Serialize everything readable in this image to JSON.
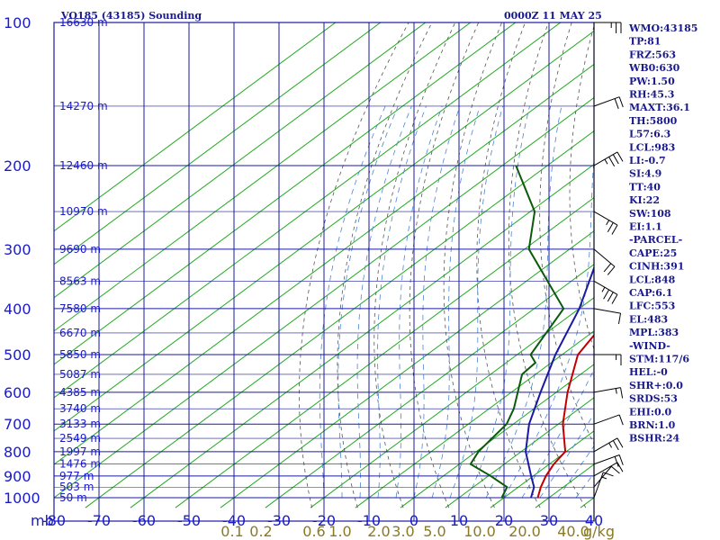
{
  "header": {
    "title": "VO185 (43185) Sounding",
    "datetime": "0000Z 11 MAY 25"
  },
  "indices": [
    "WMO:43185",
    "TP:81",
    "FRZ:563",
    "WB0:630",
    "PW:1.50",
    "RH:45.3",
    "MAXT:36.1",
    "TH:5800",
    "L57:6.3",
    "LCL:983",
    "LI:-0.7",
    "SI:4.9",
    "TT:40",
    "KI:22",
    "SW:108",
    "EI:1.1",
    "-PARCEL-",
    "CAPE:25",
    "CINH:391",
    "LCL:848",
    "CAP:6.1",
    "LFC:553",
    "EL:483",
    "MPL:383",
    "-WIND-",
    "STM:117/6",
    "HEL:-0",
    "SHR+:0.0",
    "SRDS:53",
    "EHI:0.0",
    "BRN:1.0",
    "BSHR:24"
  ],
  "chart_data": {
    "type": "line",
    "title": "VO185 (43185) Sounding",
    "xlabel": "",
    "ylabel": "mb",
    "x_axis": {
      "unit": "C",
      "range": [
        -80,
        40
      ],
      "ticks": [
        -80,
        -70,
        -60,
        -50,
        -40,
        -30,
        -20,
        -10,
        0,
        10,
        20,
        30,
        40
      ]
    },
    "y_axis": {
      "unit": "mb",
      "scale": "log",
      "range": [
        1000,
        100
      ],
      "ticks": [
        100,
        200,
        300,
        400,
        500,
        600,
        700,
        800,
        900,
        1000
      ]
    },
    "corner_label": "mb",
    "height_labels": [
      {
        "p": 100,
        "text": "16630 m"
      },
      {
        "p": 150,
        "text": "14270 m"
      },
      {
        "p": 200,
        "text": "12460 m"
      },
      {
        "p": 250,
        "text": "10970 m"
      },
      {
        "p": 300,
        "text": "9690 m"
      },
      {
        "p": 350,
        "text": "8563 m"
      },
      {
        "p": 400,
        "text": "7580 m"
      },
      {
        "p": 450,
        "text": "6670 m"
      },
      {
        "p": 500,
        "text": "5850 m"
      },
      {
        "p": 550,
        "text": "5087 m"
      },
      {
        "p": 600,
        "text": "4385 m"
      },
      {
        "p": 650,
        "text": "3740 m"
      },
      {
        "p": 700,
        "text": "3133 m"
      },
      {
        "p": 750,
        "text": "2549 m"
      },
      {
        "p": 800,
        "text": "1997 m"
      },
      {
        "p": 850,
        "text": "1476 m"
      },
      {
        "p": 900,
        "text": "977 m"
      },
      {
        "p": 950,
        "text": "503 m"
      },
      {
        "p": 1000,
        "text": "50 m"
      }
    ],
    "mixing_ratio_labels": [
      {
        "w": 0.1,
        "text": "0.1"
      },
      {
        "w": 0.2,
        "text": "0.2"
      },
      {
        "w": 0.6,
        "text": "0.6"
      },
      {
        "w": 1.0,
        "text": "1.0"
      },
      {
        "w": 2.0,
        "text": "2.0"
      },
      {
        "w": 3.0,
        "text": "3.0"
      },
      {
        "w": 5.0,
        "text": "5.0"
      },
      {
        "w": 10.0,
        "text": "10.0"
      },
      {
        "w": 20.0,
        "text": "20.0"
      },
      {
        "w": 40.0,
        "text": "40.0"
      }
    ],
    "mixing_ratio_unit": "g/kg",
    "series": [
      {
        "values": [
          {
            "p": 1000,
            "t": 27.5
          },
          {
            "p": 950,
            "t": 25.0
          },
          {
            "p": 900,
            "t": 22.8
          },
          {
            "p": 850,
            "t": 21.0
          },
          {
            "p": 800,
            "t": 19.8
          },
          {
            "p": 700,
            "t": 11.0
          },
          {
            "p": 600,
            "t": 2.5
          },
          {
            "p": 500,
            "t": -6.5
          },
          {
            "p": 450,
            "t": -9.0
          },
          {
            "p": 400,
            "t": -14.0
          },
          {
            "p": 300,
            "t": -29.0
          },
          {
            "p": 250,
            "t": -39.0
          },
          {
            "p": 200,
            "t": -51.0
          },
          {
            "p": 150,
            "t": -64.5
          },
          {
            "p": 120,
            "t": -72.0
          },
          {
            "p": 100,
            "t": -74.0
          }
        ],
        "color": "#c00000"
      },
      {
        "values": [
          {
            "p": 1000,
            "t": 19.5
          },
          {
            "p": 950,
            "t": 17.5
          },
          {
            "p": 900,
            "t": 10.5
          },
          {
            "p": 850,
            "t": 2.5
          },
          {
            "p": 800,
            "t": 0.5
          },
          {
            "p": 700,
            "t": -1.5
          },
          {
            "p": 650,
            "t": -4.5
          },
          {
            "p": 550,
            "t": -13.0
          },
          {
            "p": 520,
            "t": -13.5
          },
          {
            "p": 500,
            "t": -17.0
          },
          {
            "p": 400,
            "t": -23.5
          },
          {
            "p": 300,
            "t": -49.0
          },
          {
            "p": 250,
            "t": -59.0
          },
          {
            "p": 200,
            "t": -77.0
          }
        ],
        "color": "#0a5a0a"
      },
      {
        "values": [
          {
            "p": 1000,
            "t": 26.0
          },
          {
            "p": 950,
            "t": 23.5
          },
          {
            "p": 900,
            "t": 19.5
          },
          {
            "p": 800,
            "t": 11.0
          },
          {
            "p": 700,
            "t": 3.5
          },
          {
            "p": 600,
            "t": -3.5
          },
          {
            "p": 500,
            "t": -11.5
          },
          {
            "p": 400,
            "t": -20.0
          },
          {
            "p": 300,
            "t": -33.0
          },
          {
            "p": 250,
            "t": -42.0
          },
          {
            "p": 200,
            "t": -53.0
          },
          {
            "p": 150,
            "t": -66.0
          },
          {
            "p": 100,
            "t": -82.0
          }
        ],
        "color": "#1a1aa0"
      }
    ],
    "wind_barbs": [
      {
        "p": 100,
        "dir": 270,
        "kt": 15
      },
      {
        "p": 150,
        "dir": 250,
        "kt": 20
      },
      {
        "p": 200,
        "dir": 240,
        "kt": 25
      },
      {
        "p": 250,
        "dir": 300,
        "kt": 15
      },
      {
        "p": 300,
        "dir": 310,
        "kt": 20
      },
      {
        "p": 350,
        "dir": 300,
        "kt": 25
      },
      {
        "p": 400,
        "dir": 280,
        "kt": 10
      },
      {
        "p": 500,
        "dir": 270,
        "kt": 5
      },
      {
        "p": 600,
        "dir": 260,
        "kt": 5
      },
      {
        "p": 700,
        "dir": 250,
        "kt": 10
      },
      {
        "p": 800,
        "dir": 240,
        "kt": 15
      },
      {
        "p": 850,
        "dir": 250,
        "kt": 20
      },
      {
        "p": 900,
        "dir": 240,
        "kt": 10
      },
      {
        "p": 950,
        "dir": 220,
        "kt": 10
      },
      {
        "p": 1000,
        "dir": 200,
        "kt": 5
      }
    ],
    "grid": true,
    "colors": {
      "isobar": "#1a1aa0",
      "isotherm": "#1a1aa0",
      "skewed_isotherm": "#22aa22",
      "dry_adiabat": "#555555",
      "moist_adiabat": "#4a86d6"
    }
  }
}
